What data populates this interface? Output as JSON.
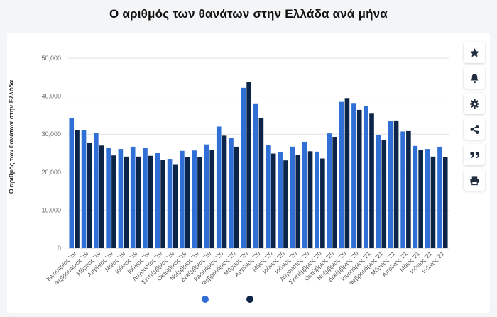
{
  "title": "Ο αριθμός των θανάτων στην Ελλάδα ανά μήνα",
  "toolbar": [
    {
      "name": "favorite",
      "icon": "star-icon"
    },
    {
      "name": "notify",
      "icon": "bell-icon"
    },
    {
      "name": "settings",
      "icon": "gear-icon"
    },
    {
      "name": "share",
      "icon": "share-icon"
    },
    {
      "name": "cite",
      "icon": "quote-icon"
    },
    {
      "name": "print",
      "icon": "printer-icon"
    }
  ],
  "colors": {
    "series1": "#2f6fd6",
    "series2": "#0b2447",
    "grid": "#e2e2e2"
  },
  "chart_data": {
    "type": "bar",
    "title": "Ο αριθμός των θανάτων στην Ελλάδα ανά μήνα",
    "xlabel": "",
    "ylabel": "Ο αριθμός των θανάτων στην Ελλάδα",
    "ylim": [
      0,
      50000
    ],
    "yticks": [
      "0",
      "10,000",
      "20,000",
      "30,000",
      "40,000",
      "50,000"
    ],
    "grid": true,
    "legend": "bottom",
    "categories": [
      "Ιανουάριος '19",
      "Φεβρουάριος '19",
      "Μάρτιος '19",
      "Απρίλιος '19",
      "Μάιος '19",
      "Ιούνιος '19",
      "Ιούλιος '19",
      "Αύγουστος '19",
      "Σεπτέμβριος '19",
      "Οκτώβριος '19",
      "Νοέμβριος '19",
      "Δεκέμβριος '19",
      "Ιανουάριος '20",
      "Φεβρουάριος '20",
      "Μάρτιος '20",
      "Απρίλιος '20",
      "Μάιος '20",
      "Ιούνιος '20",
      "Ιούλιος '20",
      "Αύγουστος '20",
      "Σεπτέμβριος '20",
      "Οκτώβριος '20",
      "Νοέμβριος '20",
      "Δεκέμβριος '20",
      "Ιανουάριος '21",
      "Φεβρουάριος '21",
      "Μάρτιος '21",
      "Απρίλιος '21",
      "Μάιος '21",
      "Ιούνιος '21",
      "Ιούλιος '21"
    ],
    "series": [
      {
        "values": [
          34300,
          31100,
          30400,
          26500,
          26100,
          26700,
          26400,
          25000,
          23500,
          25600,
          25700,
          27300,
          32000,
          29000,
          42200,
          38100,
          27100,
          25300,
          26700,
          28000,
          25400,
          30200,
          38500,
          38200,
          37400,
          29800,
          33400,
          30700,
          26900,
          26100,
          26700
        ]
      },
      {
        "values": [
          31000,
          27800,
          27000,
          24400,
          24100,
          24100,
          24300,
          23300,
          22100,
          23900,
          24000,
          25800,
          29600,
          26700,
          43800,
          34300,
          24900,
          23100,
          24500,
          25500,
          23600,
          29300,
          39500,
          36400,
          35400,
          28400,
          33600,
          30800,
          25900,
          24100,
          24000
        ]
      }
    ]
  }
}
